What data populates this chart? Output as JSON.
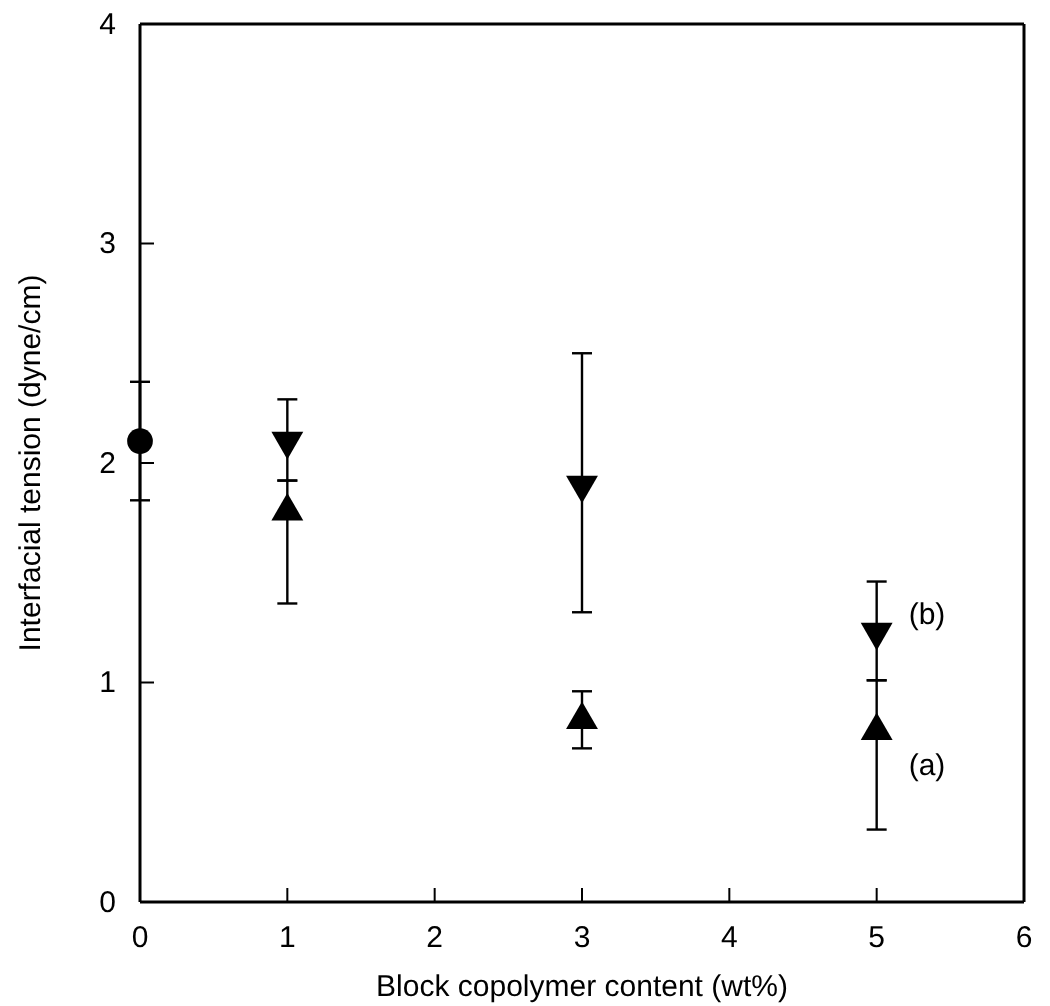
{
  "chart_data": {
    "type": "scatter",
    "xlabel": "Block copolymer content (wt%)",
    "ylabel": "Interfacial tension (dyne/cm)",
    "xlim": [
      0,
      6
    ],
    "xticks": [
      0,
      1,
      2,
      3,
      4,
      5,
      6
    ],
    "ylim": [
      0,
      4
    ],
    "yticks": [
      0,
      1,
      2,
      3,
      4
    ],
    "series": [
      {
        "color": "#000000",
        "marker": "circle",
        "x": [
          0
        ],
        "values": [
          2.1
        ],
        "errors": [
          [
            1.83,
            2.37
          ]
        ]
      },
      {
        "name": "(b)",
        "color": "#000000",
        "marker": "triangle-down",
        "x": [
          1,
          3,
          5
        ],
        "values": [
          2.1,
          1.9,
          1.23
        ],
        "errors": [
          [
            1.92,
            2.29
          ],
          [
            1.32,
            2.5
          ],
          [
            1.01,
            1.46
          ]
        ]
      },
      {
        "name": "(a)",
        "color": "#000000",
        "marker": "triangle",
        "x": [
          1,
          3,
          5
        ],
        "values": [
          1.78,
          0.83,
          0.78
        ],
        "errors": [
          [
            1.36,
            1.92
          ],
          [
            0.7,
            0.96
          ],
          [
            0.33,
            1.01
          ]
        ]
      }
    ]
  }
}
